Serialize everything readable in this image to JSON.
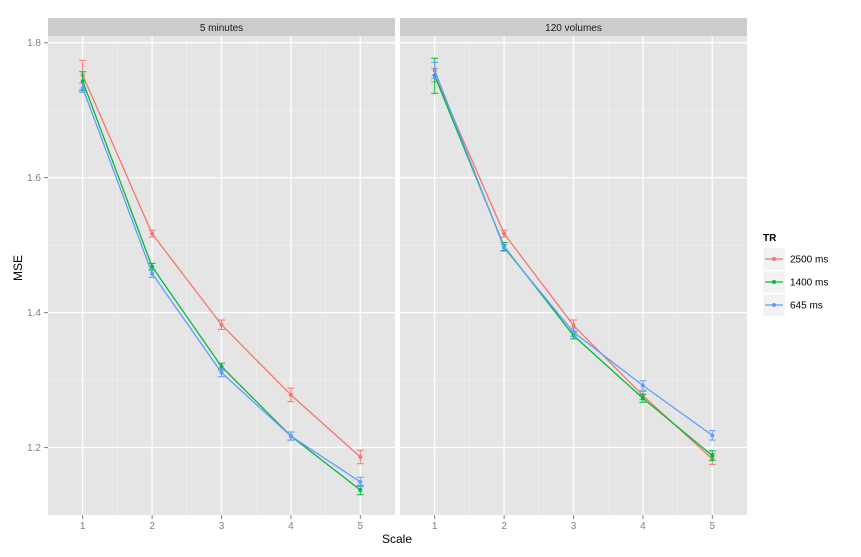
{
  "chart_data": {
    "type": "line",
    "xlabel": "Scale",
    "ylabel": "MSE",
    "x": [
      1,
      2,
      3,
      4,
      5
    ],
    "xlim": [
      0.5,
      5.5
    ],
    "ylim": [
      1.1,
      1.81
    ],
    "yticks": [
      1.2,
      1.4,
      1.6,
      1.8
    ],
    "y_tick_labels": [
      "1.2",
      "1.4",
      "1.6",
      "1.8"
    ],
    "grid": true,
    "legend": {
      "title": "TR",
      "position": "right"
    },
    "colors": {
      "2500 ms": "#F8766D",
      "1400 ms": "#00BA38",
      "645 ms": "#619CFF"
    },
    "panels": [
      {
        "title": "5 minutes",
        "series": [
          {
            "name": "2500 ms",
            "y": [
              1.752,
              1.517,
              1.382,
              1.278,
              1.186
            ],
            "err": [
              0.022,
              0.005,
              0.007,
              0.01,
              0.01
            ]
          },
          {
            "name": "1400 ms",
            "y": [
              1.743,
              1.468,
              1.32,
              1.217,
              1.137
            ],
            "err": [
              0.014,
              0.005,
              0.005,
              0.006,
              0.007
            ]
          },
          {
            "name": "645 ms",
            "y": [
              1.733,
              1.458,
              1.311,
              1.217,
              1.149
            ],
            "err": [
              0.007,
              0.006,
              0.006,
              0.006,
              0.007
            ]
          }
        ]
      },
      {
        "title": "120 volumes",
        "series": [
          {
            "name": "2500 ms",
            "y": [
              1.752,
              1.517,
              1.381,
              1.277,
              1.183
            ],
            "err": [
              0.01,
              0.005,
              0.008,
              0.006,
              0.008
            ]
          },
          {
            "name": "1400 ms",
            "y": [
              1.751,
              1.498,
              1.366,
              1.273,
              1.188
            ],
            "err": [
              0.026,
              0.006,
              0.005,
              0.006,
              0.007
            ]
          },
          {
            "name": "645 ms",
            "y": [
              1.759,
              1.496,
              1.371,
              1.292,
              1.218
            ],
            "err": [
              0.012,
              0.005,
              0.006,
              0.007,
              0.007
            ]
          }
        ]
      }
    ]
  }
}
